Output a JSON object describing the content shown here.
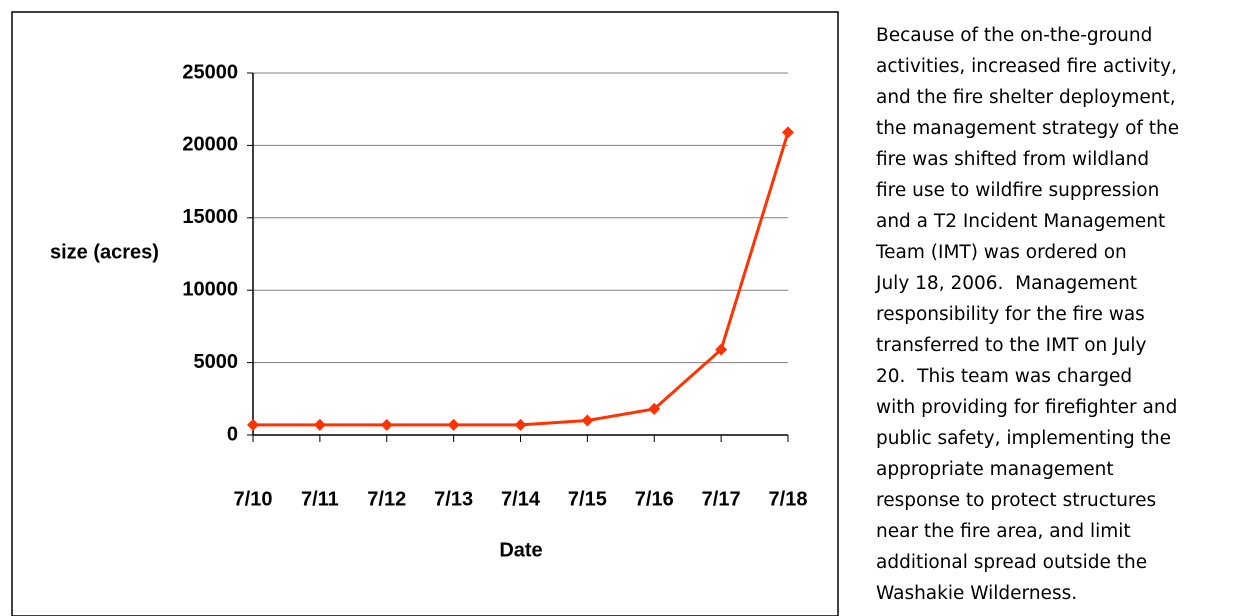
{
  "chart_data": {
    "type": "line",
    "x_label": "Date",
    "y_label": "size (acres)",
    "categories": [
      "7/10",
      "7/11",
      "7/12",
      "7/13",
      "7/14",
      "7/15",
      "7/16",
      "7/17",
      "7/18"
    ],
    "series": [
      {
        "name": "size",
        "color": "#ff3300",
        "values": [
          700,
          700,
          700,
          700,
          700,
          1000,
          1800,
          5900,
          20900
        ]
      }
    ],
    "ylim": [
      0,
      25000
    ],
    "yticks": [
      0,
      5000,
      10000,
      15000,
      20000,
      25000
    ],
    "grid": true
  },
  "text": {
    "lines": [
      "Because of the on-the-ground",
      "activities, increased fire activity,",
      "and the fire shelter deployment,",
      "the management strategy of the",
      "fire was shifted from wildland",
      "fire use to wildfire suppression",
      "and a T2 Incident Management",
      "Team (IMT) was ordered on",
      "July 18, 2006.  Management",
      "responsibility for the fire was",
      "transferred to the IMT on July",
      "20.  This team was charged",
      "with providing for firefighter and",
      "public safety, implementing the",
      "appropriate management",
      "response to protect structures",
      "near the fire area, and limit",
      "additional spread outside the",
      "Washakie Wilderness."
    ]
  }
}
